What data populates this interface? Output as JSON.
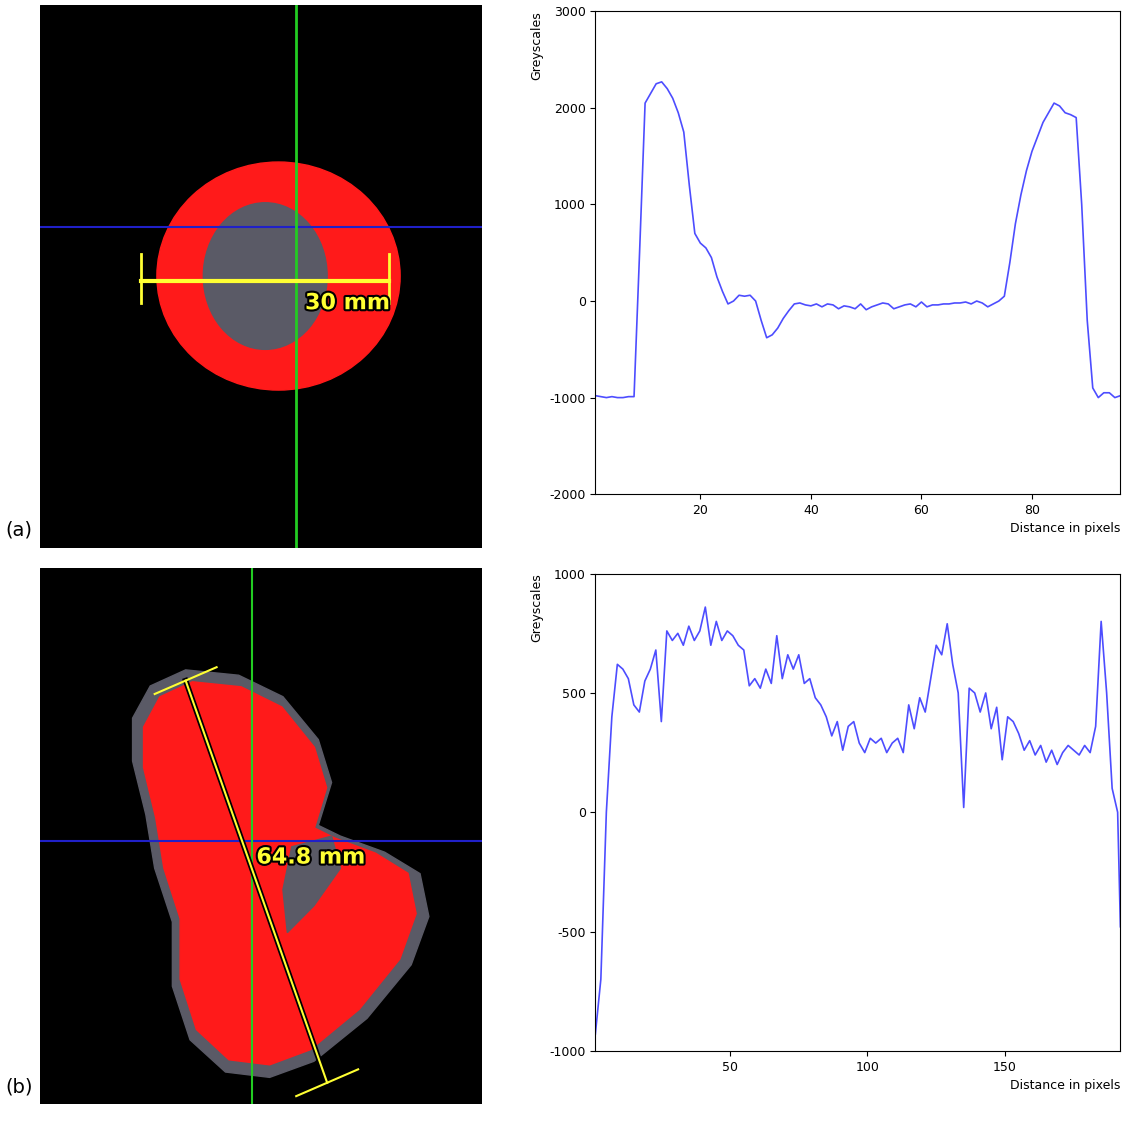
{
  "chart_data": [
    {
      "type": "image",
      "panel_label": "(a)",
      "annotations": [
        "30 mm"
      ]
    },
    {
      "type": "line",
      "xlabel": "Distance in pixels",
      "ylabel": "Greyscales",
      "color": "#4d4dff",
      "x": [
        1,
        2,
        3,
        4,
        5,
        6,
        7,
        8,
        9,
        10,
        11,
        12,
        13,
        14,
        15,
        16,
        17,
        18,
        19,
        20,
        21,
        22,
        23,
        24,
        25,
        26,
        27,
        28,
        29,
        30,
        31,
        32,
        33,
        34,
        35,
        36,
        37,
        38,
        39,
        40,
        41,
        42,
        43,
        44,
        45,
        46,
        47,
        48,
        49,
        50,
        51,
        52,
        53,
        54,
        55,
        56,
        57,
        58,
        59,
        60,
        61,
        62,
        63,
        64,
        65,
        66,
        67,
        68,
        69,
        70,
        71,
        72,
        73,
        74,
        75,
        76,
        77,
        78,
        79,
        80,
        81,
        82,
        83,
        84,
        85,
        86,
        87,
        88,
        89,
        90,
        91,
        92,
        93,
        94,
        95,
        96
      ],
      "values": [
        -980,
        -990,
        -1000,
        -990,
        -1000,
        -1000,
        -990,
        -990,
        500,
        2050,
        2150,
        2250,
        2270,
        2200,
        2100,
        1950,
        1750,
        1200,
        700,
        600,
        550,
        450,
        250,
        100,
        -30,
        0,
        60,
        50,
        60,
        0,
        -200,
        -380,
        -350,
        -280,
        -180,
        -100,
        -30,
        -20,
        -40,
        -50,
        -30,
        -60,
        -30,
        -40,
        -80,
        -50,
        -60,
        -80,
        -30,
        -90,
        -60,
        -40,
        -20,
        -30,
        -80,
        -60,
        -40,
        -30,
        -60,
        -10,
        -60,
        -40,
        -40,
        -30,
        -30,
        -20,
        -20,
        -10,
        -30,
        0,
        -20,
        -60,
        -30,
        0,
        50,
        400,
        800,
        1100,
        1350,
        1550,
        1700,
        1850,
        1950,
        2050,
        2020,
        1950,
        1930,
        1900,
        1000,
        -200,
        -900,
        -1000,
        -950,
        -950,
        -1000,
        -980
      ],
      "xlim": [
        1,
        96
      ],
      "xticks": [
        20,
        40,
        60,
        80
      ],
      "ylim": [
        -2000,
        3000
      ],
      "yticks": [
        -2000,
        -1000,
        0,
        1000,
        2000,
        3000
      ]
    },
    {
      "type": "image",
      "panel_label": "(b)",
      "annotations": [
        "64.8 mm"
      ]
    },
    {
      "type": "line",
      "xlabel": "Distance in pixels",
      "ylabel": "Greyscales",
      "color": "#4d4dff",
      "x": [
        1,
        3,
        5,
        7,
        9,
        11,
        13,
        15,
        17,
        19,
        21,
        23,
        25,
        27,
        29,
        31,
        33,
        35,
        37,
        39,
        41,
        43,
        45,
        47,
        49,
        51,
        53,
        55,
        57,
        59,
        61,
        63,
        65,
        67,
        69,
        71,
        73,
        75,
        77,
        79,
        81,
        83,
        85,
        87,
        89,
        91,
        93,
        95,
        97,
        99,
        101,
        103,
        105,
        107,
        109,
        111,
        113,
        115,
        117,
        119,
        121,
        123,
        125,
        127,
        129,
        131,
        133,
        135,
        137,
        139,
        141,
        143,
        145,
        147,
        149,
        151,
        153,
        155,
        157,
        159,
        161,
        163,
        165,
        167,
        169,
        171,
        173,
        175,
        177,
        179,
        181,
        183,
        185,
        187,
        189,
        191,
        192
      ],
      "values": [
        -930,
        -700,
        0,
        400,
        620,
        600,
        560,
        450,
        420,
        550,
        600,
        680,
        380,
        760,
        720,
        750,
        700,
        780,
        720,
        760,
        860,
        700,
        800,
        720,
        760,
        740,
        700,
        680,
        530,
        560,
        520,
        600,
        540,
        740,
        560,
        660,
        600,
        660,
        540,
        560,
        480,
        450,
        400,
        320,
        380,
        260,
        360,
        380,
        290,
        250,
        310,
        290,
        310,
        250,
        290,
        310,
        250,
        450,
        350,
        480,
        420,
        560,
        700,
        660,
        790,
        620,
        500,
        20,
        520,
        500,
        420,
        500,
        350,
        440,
        220,
        400,
        380,
        330,
        260,
        300,
        240,
        280,
        210,
        260,
        200,
        250,
        280,
        260,
        240,
        280,
        250,
        360,
        800,
        500,
        100,
        0,
        -480
      ],
      "xlim": [
        1,
        192
      ],
      "xticks": [
        50,
        100,
        150
      ],
      "ylim": [
        -1000,
        1000
      ],
      "yticks": [
        -1000,
        -500,
        0,
        500,
        1000
      ]
    }
  ]
}
